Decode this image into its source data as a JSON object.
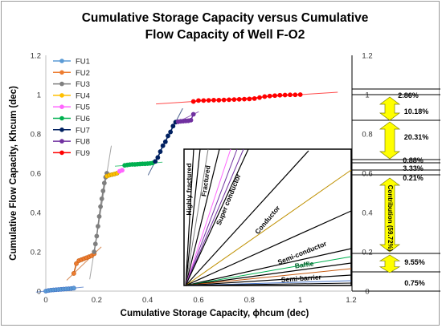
{
  "chart_data": {
    "type": "scatter",
    "title": [
      "Cumulative Storage Capacity versus Cumulative",
      "Flow Capacity of Well F-O2"
    ],
    "xlabel": "Cumulative Storage Capacity, ϕhcum (dec)",
    "ylabel": "Cumulative Flow Capacity, Khcum (dec)",
    "xlim": [
      0,
      1.2
    ],
    "ylim": [
      0,
      1.2
    ],
    "xticks": [
      "0",
      "0.2",
      "0.4",
      "0.6",
      "0.8",
      "1",
      "1.2"
    ],
    "yticks": [
      "0",
      "0.2",
      "0.4",
      "0.6",
      "0.8",
      "1",
      "1.2"
    ],
    "right_yticks": [
      "0",
      "0.2",
      "0.4",
      "0.6",
      "0.8",
      "1",
      "1.2"
    ],
    "legend_position": "top-left",
    "series": [
      {
        "name": "FU1",
        "color": "#4472c4",
        "marker_color": "#5b9bd5",
        "x": [
          0.0,
          0.01,
          0.02,
          0.03,
          0.04,
          0.05,
          0.06,
          0.07,
          0.08,
          0.09,
          0.1,
          0.11
        ],
        "y": [
          0.0,
          0.003,
          0.005,
          0.006,
          0.007,
          0.008,
          0.009,
          0.01,
          0.011,
          0.012,
          0.013,
          0.015
        ]
      },
      {
        "name": "FU2",
        "color": "#c55a11",
        "marker_color": "#ed7d31",
        "x": [
          0.11,
          0.12,
          0.13,
          0.14,
          0.15,
          0.16,
          0.17,
          0.18,
          0.19
        ],
        "y": [
          0.09,
          0.14,
          0.155,
          0.16,
          0.165,
          0.17,
          0.175,
          0.18,
          0.19
        ]
      },
      {
        "name": "FU3",
        "color": "#7f7f7f",
        "marker_color": "#7f7f7f",
        "x": [
          0.19,
          0.195,
          0.2,
          0.205,
          0.21,
          0.215,
          0.22,
          0.225,
          0.23,
          0.235,
          0.24
        ],
        "y": [
          0.2,
          0.24,
          0.28,
          0.33,
          0.38,
          0.43,
          0.47,
          0.51,
          0.55,
          0.58,
          0.6
        ]
      },
      {
        "name": "FU4",
        "color": "#bf9000",
        "marker_color": "#ffc000",
        "x": [
          0.24,
          0.25,
          0.26,
          0.27,
          0.28
        ],
        "y": [
          0.585,
          0.59,
          0.593,
          0.596,
          0.6
        ]
      },
      {
        "name": "FU5",
        "color": "#ff66ff",
        "marker_color": "#ff66ff",
        "x": [
          0.29,
          0.3
        ],
        "y": [
          0.61,
          0.615
        ]
      },
      {
        "name": "FU6",
        "color": "#00b050",
        "marker_color": "#00b050",
        "x": [
          0.31,
          0.32,
          0.33,
          0.34,
          0.35,
          0.36,
          0.37,
          0.38,
          0.39,
          0.4,
          0.41,
          0.42
        ],
        "y": [
          0.64,
          0.642,
          0.644,
          0.645,
          0.645,
          0.646,
          0.647,
          0.648,
          0.648,
          0.649,
          0.65,
          0.652
        ]
      },
      {
        "name": "FU7",
        "color": "#002060",
        "marker_color": "#002060",
        "x": [
          0.43,
          0.44,
          0.45,
          0.46,
          0.47,
          0.48,
          0.49,
          0.5,
          0.51
        ],
        "y": [
          0.66,
          0.68,
          0.71,
          0.74,
          0.76,
          0.79,
          0.81,
          0.84,
          0.86
        ]
      },
      {
        "name": "FU8",
        "color": "#7030a0",
        "marker_color": "#7030a0",
        "x": [
          0.52,
          0.53,
          0.54,
          0.55,
          0.56,
          0.57,
          0.58
        ],
        "y": [
          0.862,
          0.864,
          0.865,
          0.866,
          0.867,
          0.87,
          0.9
        ]
      },
      {
        "name": "FU9",
        "color": "#ff0000",
        "marker_color": "#ff0000",
        "x": [
          0.58,
          0.6,
          0.62,
          0.64,
          0.66,
          0.68,
          0.7,
          0.72,
          0.74,
          0.76,
          0.78,
          0.8,
          0.82,
          0.84,
          0.86,
          0.88,
          0.9,
          0.92,
          0.94,
          0.96,
          0.98,
          1.0
        ],
        "y": [
          0.965,
          0.97,
          0.97,
          0.971,
          0.972,
          0.972,
          0.973,
          0.974,
          0.975,
          0.976,
          0.977,
          0.978,
          0.98,
          0.985,
          0.99,
          0.993,
          0.995,
          0.997,
          0.998,
          0.999,
          0.999,
          1.0
        ]
      }
    ],
    "inset": {
      "labels": [
        {
          "text": "Highly fractured"
        },
        {
          "text": "Fractured"
        },
        {
          "text": "Super conductor"
        },
        {
          "text": "Conductor"
        },
        {
          "text": "Semi-conductor"
        },
        {
          "text": "Baffle"
        },
        {
          "text": "Semi-barrier"
        }
      ]
    },
    "contributions": {
      "labels": [
        {
          "text": "2.86%",
          "arrow": false
        },
        {
          "text": "10.18%",
          "arrow": true
        },
        {
          "text": "20.31%",
          "arrow": true
        },
        {
          "text": "0.88%",
          "arrow": false
        },
        {
          "text": "3.33%",
          "arrow": false
        },
        {
          "text": "0.21%",
          "arrow": false
        },
        {
          "text": "Contribution (59.72%)",
          "arrow": true
        },
        {
          "text": "9.55%",
          "arrow": true
        },
        {
          "text": "0.75%",
          "arrow": false
        }
      ],
      "arrow_color": "#ffff00"
    }
  }
}
